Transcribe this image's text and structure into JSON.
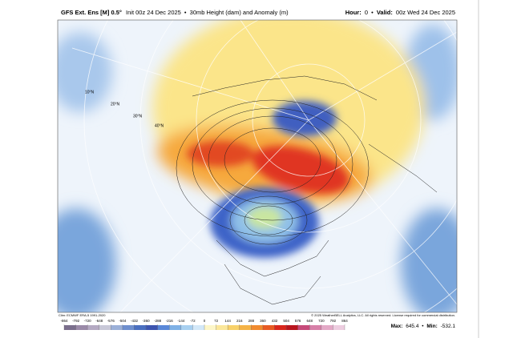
{
  "header": {
    "model": "GFS Ext. Ens [M] 0.5°",
    "init": "Init 00z 24 Dec 2025",
    "separator": "•",
    "product": "30mb Height (dam) and Anomaly (m)",
    "hour_label": "Hour:",
    "hour": 0,
    "valid_label": "Valid:",
    "valid": "00z Wed 24 Dec 2025"
  },
  "map": {
    "lat_labels": [
      "10°N",
      "20°N",
      "30°N",
      "40°N"
    ],
    "clim": "Clim: ECMWF ERA-5 1991-2020",
    "copyright": "© 2025 WeatherBELL Analytics, LLC. All rights reserved. License required for commercial distribution."
  },
  "colorbar": {
    "ticks": [
      -864,
      -792,
      -720,
      -648,
      -576,
      -504,
      -432,
      -360,
      -288,
      -216,
      -144,
      -72,
      0,
      72,
      144,
      216,
      288,
      360,
      432,
      504,
      576,
      648,
      720,
      792,
      864
    ],
    "colors": [
      "#7a6e8c",
      "#9a8aa8",
      "#b4a9c2",
      "#c8c8d8",
      "#9bb0d8",
      "#6f8fce",
      "#4a6fc0",
      "#3d55b0",
      "#5a88d8",
      "#7fb1e6",
      "#a8d0f0",
      "#d3e8f8",
      "#fdf6c8",
      "#fbe79a",
      "#f8d16a",
      "#f5b347",
      "#f18a2e",
      "#e85a22",
      "#d9261c",
      "#b9151e",
      "#c64a7a",
      "#d780a8",
      "#e3a9c6",
      "#edcde0"
    ]
  },
  "stats": {
    "max_label": "Max:",
    "max": 645.4,
    "min_label": "Min:",
    "min": -532.1
  }
}
